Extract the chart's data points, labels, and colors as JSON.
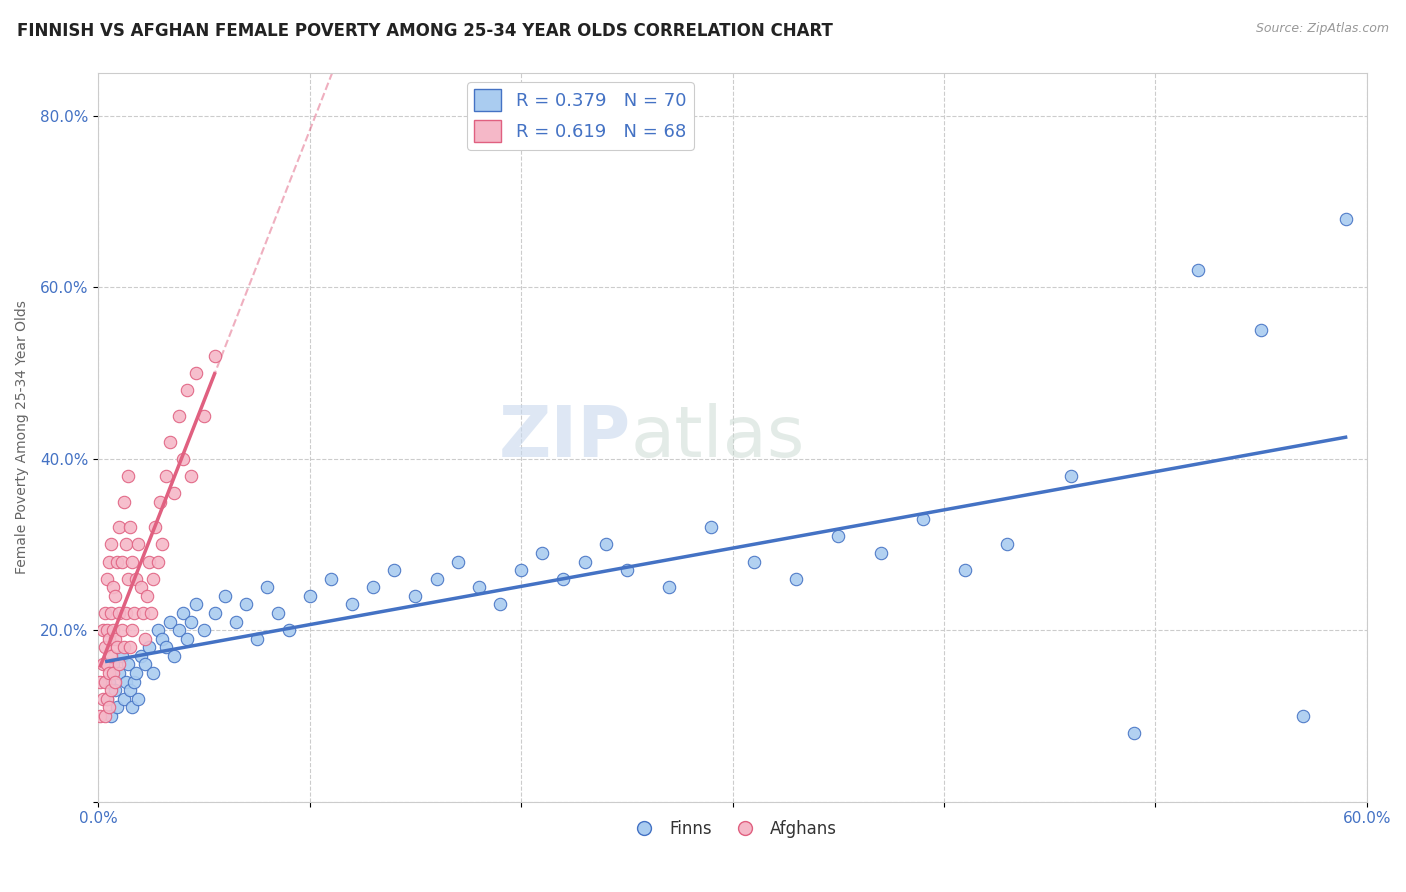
{
  "title": "FINNISH VS AFGHAN FEMALE POVERTY AMONG 25-34 YEAR OLDS CORRELATION CHART",
  "source": "Source: ZipAtlas.com",
  "xlabel": "",
  "ylabel": "Female Poverty Among 25-34 Year Olds",
  "xlim": [
    0.0,
    0.6
  ],
  "ylim": [
    0.0,
    0.85
  ],
  "xticks": [
    0.0,
    0.1,
    0.2,
    0.3,
    0.4,
    0.5,
    0.6
  ],
  "yticks": [
    0.0,
    0.2,
    0.4,
    0.6,
    0.8
  ],
  "xticklabels": [
    "0.0%",
    "",
    "",
    "",
    "",
    "",
    "60.0%"
  ],
  "yticklabels": [
    "",
    "20.0%",
    "40.0%",
    "60.0%",
    "80.0%"
  ],
  "finns_R": 0.379,
  "finns_N": 70,
  "afghans_R": 0.619,
  "afghans_N": 68,
  "finns_color": "#aaccf0",
  "afghans_color": "#f5b8c8",
  "finns_line_color": "#4472c4",
  "afghans_line_color": "#e06080",
  "tick_label_color": "#4472c4",
  "watermark_zip": "ZIP",
  "watermark_atlas": "atlas",
  "background_color": "#ffffff",
  "grid_color": "#cccccc",
  "title_fontsize": 12,
  "axis_label_fontsize": 10,
  "tick_fontsize": 11,
  "finns_scatter_x": [
    0.004,
    0.005,
    0.006,
    0.007,
    0.008,
    0.009,
    0.01,
    0.011,
    0.012,
    0.013,
    0.014,
    0.015,
    0.016,
    0.017,
    0.018,
    0.019,
    0.02,
    0.022,
    0.024,
    0.026,
    0.028,
    0.03,
    0.032,
    0.034,
    0.036,
    0.038,
    0.04,
    0.042,
    0.044,
    0.046,
    0.05,
    0.055,
    0.06,
    0.065,
    0.07,
    0.075,
    0.08,
    0.085,
    0.09,
    0.1,
    0.11,
    0.12,
    0.13,
    0.14,
    0.15,
    0.16,
    0.17,
    0.18,
    0.19,
    0.2,
    0.21,
    0.22,
    0.23,
    0.24,
    0.25,
    0.27,
    0.29,
    0.31,
    0.33,
    0.35,
    0.37,
    0.39,
    0.41,
    0.43,
    0.46,
    0.49,
    0.52,
    0.55,
    0.57,
    0.59
  ],
  "finns_scatter_y": [
    0.12,
    0.14,
    0.1,
    0.16,
    0.13,
    0.11,
    0.15,
    0.17,
    0.12,
    0.14,
    0.16,
    0.13,
    0.11,
    0.14,
    0.15,
    0.12,
    0.17,
    0.16,
    0.18,
    0.15,
    0.2,
    0.19,
    0.18,
    0.21,
    0.17,
    0.2,
    0.22,
    0.19,
    0.21,
    0.23,
    0.2,
    0.22,
    0.24,
    0.21,
    0.23,
    0.19,
    0.25,
    0.22,
    0.2,
    0.24,
    0.26,
    0.23,
    0.25,
    0.27,
    0.24,
    0.26,
    0.28,
    0.25,
    0.23,
    0.27,
    0.29,
    0.26,
    0.28,
    0.3,
    0.27,
    0.25,
    0.32,
    0.28,
    0.26,
    0.31,
    0.29,
    0.33,
    0.27,
    0.3,
    0.38,
    0.08,
    0.62,
    0.55,
    0.1,
    0.68
  ],
  "afghans_scatter_x": [
    0.001,
    0.001,
    0.002,
    0.002,
    0.002,
    0.003,
    0.003,
    0.003,
    0.003,
    0.004,
    0.004,
    0.004,
    0.004,
    0.005,
    0.005,
    0.005,
    0.005,
    0.006,
    0.006,
    0.006,
    0.006,
    0.007,
    0.007,
    0.007,
    0.008,
    0.008,
    0.008,
    0.009,
    0.009,
    0.01,
    0.01,
    0.01,
    0.011,
    0.011,
    0.012,
    0.012,
    0.013,
    0.013,
    0.014,
    0.014,
    0.015,
    0.015,
    0.016,
    0.016,
    0.017,
    0.018,
    0.019,
    0.02,
    0.021,
    0.022,
    0.023,
    0.024,
    0.025,
    0.026,
    0.027,
    0.028,
    0.029,
    0.03,
    0.032,
    0.034,
    0.036,
    0.038,
    0.04,
    0.042,
    0.044,
    0.046,
    0.05,
    0.055
  ],
  "afghans_scatter_y": [
    0.1,
    0.14,
    0.12,
    0.16,
    0.2,
    0.1,
    0.14,
    0.18,
    0.22,
    0.12,
    0.16,
    0.2,
    0.26,
    0.11,
    0.15,
    0.19,
    0.28,
    0.13,
    0.17,
    0.22,
    0.3,
    0.15,
    0.2,
    0.25,
    0.14,
    0.19,
    0.24,
    0.18,
    0.28,
    0.16,
    0.22,
    0.32,
    0.2,
    0.28,
    0.18,
    0.35,
    0.22,
    0.3,
    0.26,
    0.38,
    0.18,
    0.32,
    0.2,
    0.28,
    0.22,
    0.26,
    0.3,
    0.25,
    0.22,
    0.19,
    0.24,
    0.28,
    0.22,
    0.26,
    0.32,
    0.28,
    0.35,
    0.3,
    0.38,
    0.42,
    0.36,
    0.45,
    0.4,
    0.48,
    0.38,
    0.5,
    0.45,
    0.52
  ]
}
